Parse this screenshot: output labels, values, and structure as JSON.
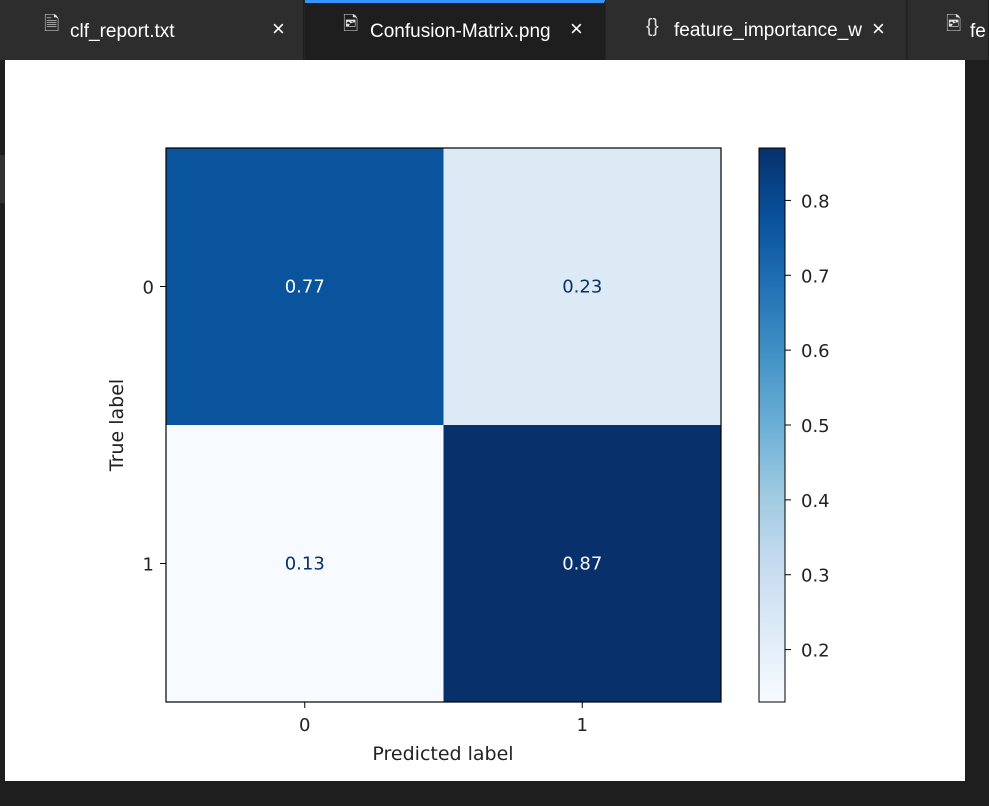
{
  "tabs": [
    {
      "label": "clf_report.txt",
      "icon": "file-text-icon",
      "close": "×",
      "active": false
    },
    {
      "label": "Confusion-Matrix.png",
      "icon": "image-file-icon",
      "close": "×",
      "active": true
    },
    {
      "label": "feature_importance_w",
      "icon": "json-braces-icon",
      "close": "×",
      "active": false
    },
    {
      "label": "fe",
      "icon": "image-file-icon",
      "close": "",
      "active": false
    }
  ],
  "chart_data": {
    "type": "heatmap",
    "rows": [
      "0",
      "1"
    ],
    "columns": [
      "0",
      "1"
    ],
    "values": [
      [
        0.77,
        0.23
      ],
      [
        0.13,
        0.87
      ]
    ],
    "xlabel": "Predicted label",
    "ylabel": "True label",
    "colorbar": {
      "ticks": [
        "0.2",
        "0.3",
        "0.4",
        "0.5",
        "0.6",
        "0.7",
        "0.8"
      ],
      "range": [
        0.13,
        0.87
      ],
      "colormap": "Blues"
    }
  }
}
